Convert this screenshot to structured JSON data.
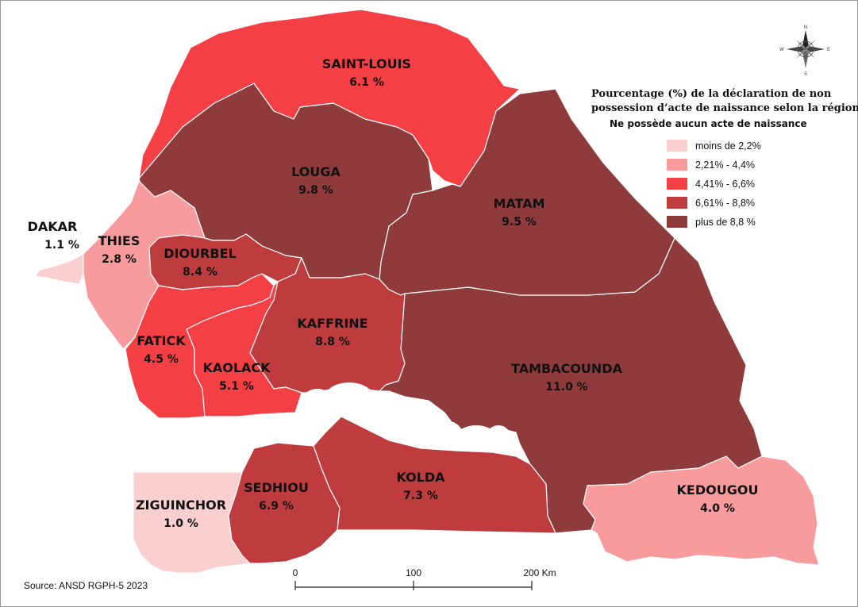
{
  "legend": {
    "title_line1": "Pourcentage (%) de la déclaration de non",
    "title_line2": "possession d’acte de naissance selon la région",
    "subtitle": "Ne possède aucun acte de naissance",
    "classes": [
      {
        "label": "moins de 2,2%",
        "color": "#f9cfd0"
      },
      {
        "label": "2,21% - 4,4%",
        "color": "#f79b9d"
      },
      {
        "label": "4,41% - 6,6%",
        "color": "#f43f45"
      },
      {
        "label": "6,61% - 8,8%",
        "color": "#bf3c3e"
      },
      {
        "label": "plus de 8,8 %",
        "color": "#8f3b3b"
      }
    ]
  },
  "regions": [
    {
      "name": "SAINT-LOUIS",
      "value": "6.1 %",
      "class": 2
    },
    {
      "name": "LOUGA",
      "value": "9.8 %",
      "class": 4
    },
    {
      "name": "MATAM",
      "value": "9.5 %",
      "class": 4
    },
    {
      "name": "DAKAR",
      "value": "1.1 %",
      "class": 0
    },
    {
      "name": "THIES",
      "value": "2.8 %",
      "class": 1
    },
    {
      "name": "DIOURBEL",
      "value": "8.4 %",
      "class": 3
    },
    {
      "name": "KAFFRINE",
      "value": "8.8 %",
      "class": 3
    },
    {
      "name": "FATICK",
      "value": "4.5 %",
      "class": 2
    },
    {
      "name": "KAOLACK",
      "value": "5.1 %",
      "class": 2
    },
    {
      "name": "TAMBACOUNDA",
      "value": "11.0 %",
      "class": 4
    },
    {
      "name": "SEDHIOU",
      "value": "6.9 %",
      "class": 3
    },
    {
      "name": "KOLDA",
      "value": "7.3 %",
      "class": 3
    },
    {
      "name": "ZIGUINCHOR",
      "value": "1.0 %",
      "class": 0
    },
    {
      "name": "KEDOUGOU",
      "value": "4.0 %",
      "class": 1
    }
  ],
  "scalebar": {
    "ticks": [
      "0",
      "100",
      "200 Km"
    ]
  },
  "compass": {
    "n": "N",
    "s": "S",
    "e": "E",
    "w": "W"
  },
  "source": "Source: ANSD RGPH-5 2023"
}
